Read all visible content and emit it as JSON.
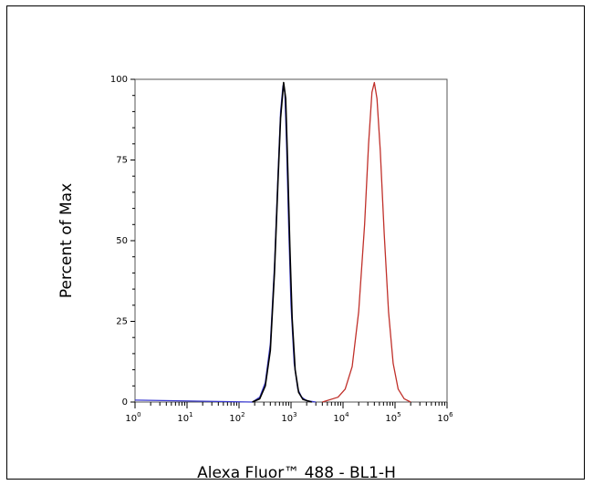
{
  "chart_data": {
    "type": "line",
    "title": "",
    "xlabel": "Alexa Fluor™ 488 - BL1-H",
    "ylabel": "Percent of Max",
    "x_scale": "log",
    "xlim": [
      1,
      1000000
    ],
    "ylim": [
      0,
      100
    ],
    "x_ticks": [
      {
        "value": 1,
        "base": "10",
        "exp": "0"
      },
      {
        "value": 10,
        "base": "10",
        "exp": "1"
      },
      {
        "value": 100,
        "base": "10",
        "exp": "2"
      },
      {
        "value": 1000,
        "base": "10",
        "exp": "3"
      },
      {
        "value": 10000,
        "base": "10",
        "exp": "4"
      },
      {
        "value": 100000,
        "base": "10",
        "exp": "5"
      },
      {
        "value": 1000000,
        "base": "10",
        "exp": "6"
      }
    ],
    "y_ticks": [
      "0",
      "25",
      "50",
      "75",
      "100"
    ],
    "grid": false,
    "series": [
      {
        "color": "#3a3ad0",
        "points": [
          [
            1,
            0.6
          ],
          [
            180,
            0
          ],
          [
            250,
            1.5
          ],
          [
            320,
            6
          ],
          [
            400,
            18
          ],
          [
            480,
            42
          ],
          [
            560,
            70
          ],
          [
            630,
            90
          ],
          [
            700,
            98
          ],
          [
            760,
            96
          ],
          [
            820,
            80
          ],
          [
            900,
            55
          ],
          [
            1000,
            30
          ],
          [
            1150,
            12
          ],
          [
            1350,
            4
          ],
          [
            1600,
            1.5
          ],
          [
            2000,
            0.4
          ],
          [
            3000,
            0
          ]
        ]
      },
      {
        "color": "#000000",
        "points": [
          [
            180,
            0
          ],
          [
            250,
            1
          ],
          [
            320,
            5
          ],
          [
            400,
            16
          ],
          [
            480,
            40
          ],
          [
            560,
            68
          ],
          [
            630,
            88
          ],
          [
            720,
            99
          ],
          [
            790,
            94
          ],
          [
            860,
            74
          ],
          [
            950,
            48
          ],
          [
            1050,
            26
          ],
          [
            1200,
            10
          ],
          [
            1400,
            3
          ],
          [
            1700,
            0.8
          ],
          [
            2500,
            0
          ]
        ]
      },
      {
        "color": "#c0302a",
        "points": [
          [
            4000,
            0
          ],
          [
            8000,
            1.5
          ],
          [
            11000,
            4
          ],
          [
            15000,
            11
          ],
          [
            20000,
            28
          ],
          [
            26000,
            55
          ],
          [
            31000,
            80
          ],
          [
            36000,
            96
          ],
          [
            40000,
            99
          ],
          [
            45000,
            94
          ],
          [
            52000,
            78
          ],
          [
            62000,
            52
          ],
          [
            75000,
            28
          ],
          [
            92000,
            12
          ],
          [
            115000,
            4
          ],
          [
            150000,
            1
          ],
          [
            200000,
            0
          ]
        ]
      }
    ]
  }
}
